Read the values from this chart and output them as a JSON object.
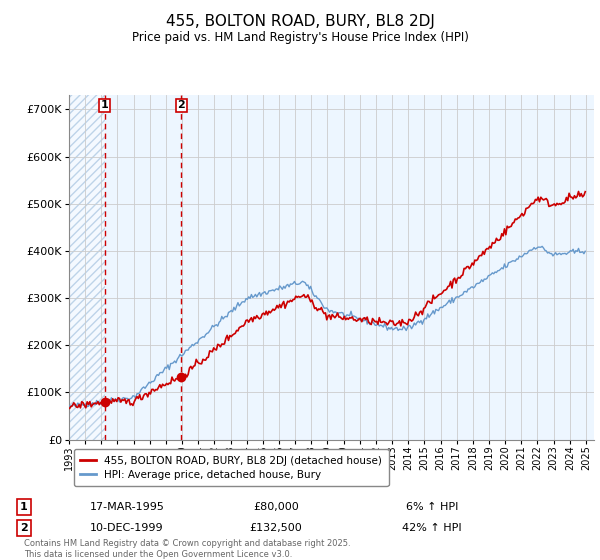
{
  "title": "455, BOLTON ROAD, BURY, BL8 2DJ",
  "subtitle": "Price paid vs. HM Land Registry's House Price Index (HPI)",
  "hpi_label": "HPI: Average price, detached house, Bury",
  "price_label": "455, BOLTON ROAD, BURY, BL8 2DJ (detached house)",
  "footer": "Contains HM Land Registry data © Crown copyright and database right 2025.\nThis data is licensed under the Open Government Licence v3.0.",
  "sale1_date": "17-MAR-1995",
  "sale1_price": 80000,
  "sale1_hpi": "6% ↑ HPI",
  "sale2_date": "10-DEC-1999",
  "sale2_price": 132500,
  "sale2_hpi": "42% ↑ HPI",
  "ylim": [
    0,
    730000
  ],
  "xlim_start": 1993.0,
  "xlim_end": 2025.5,
  "price_line_color": "#cc0000",
  "hpi_line_color": "#6699cc",
  "grid_color": "#cccccc",
  "sale1_x": 1995.21,
  "sale2_x": 1999.94,
  "sale1_y": 80000,
  "sale2_y": 132500,
  "marker_color": "#cc0000",
  "dashed_line_color": "#cc0000",
  "hatch_bg_color": "#ddeeff",
  "solid_bg_color": "#ddeeff"
}
